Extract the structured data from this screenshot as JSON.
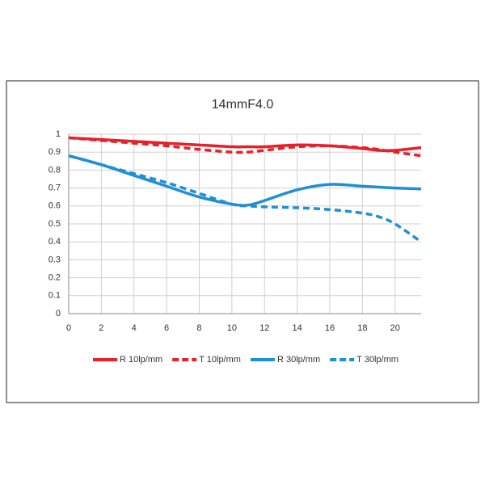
{
  "chart_data": {
    "type": "line",
    "title": "14mmF4.0",
    "x": [
      0,
      2,
      4,
      6,
      8,
      10,
      11,
      12,
      14,
      16,
      18,
      19,
      20,
      21.6
    ],
    "series": [
      {
        "name": "R 10lp/mm",
        "color": "#e8202a",
        "dashed": false,
        "values": [
          0.98,
          0.97,
          0.96,
          0.95,
          0.94,
          0.93,
          0.93,
          0.93,
          0.94,
          0.935,
          0.92,
          0.91,
          0.91,
          0.925
        ]
      },
      {
        "name": "T 10lp/mm",
        "color": "#e8202a",
        "dashed": true,
        "values": [
          0.98,
          0.965,
          0.95,
          0.935,
          0.915,
          0.9,
          0.9,
          0.91,
          0.93,
          0.935,
          0.925,
          0.915,
          0.9,
          0.88
        ]
      },
      {
        "name": "R 30lp/mm",
        "color": "#1f8fd6",
        "dashed": false,
        "values": [
          0.88,
          0.83,
          0.77,
          0.71,
          0.65,
          0.61,
          0.605,
          0.63,
          0.69,
          0.72,
          0.71,
          0.705,
          0.7,
          0.695
        ]
      },
      {
        "name": "T 30lp/mm",
        "color": "#1f8fd6",
        "dashed": true,
        "values": [
          0.88,
          0.83,
          0.78,
          0.73,
          0.67,
          0.61,
          0.6,
          0.595,
          0.59,
          0.58,
          0.56,
          0.54,
          0.5,
          0.4
        ]
      }
    ],
    "xlim": [
      0,
      21.6
    ],
    "xticks": [
      0,
      2,
      4,
      6,
      8,
      10,
      12,
      14,
      16,
      18,
      20
    ],
    "ylim": [
      0,
      1
    ],
    "yticks": [
      0,
      0.1,
      0.2,
      0.3,
      0.4,
      0.5,
      0.6,
      0.7,
      0.8,
      0.9,
      1
    ],
    "grid": true,
    "legend": "bottom"
  }
}
